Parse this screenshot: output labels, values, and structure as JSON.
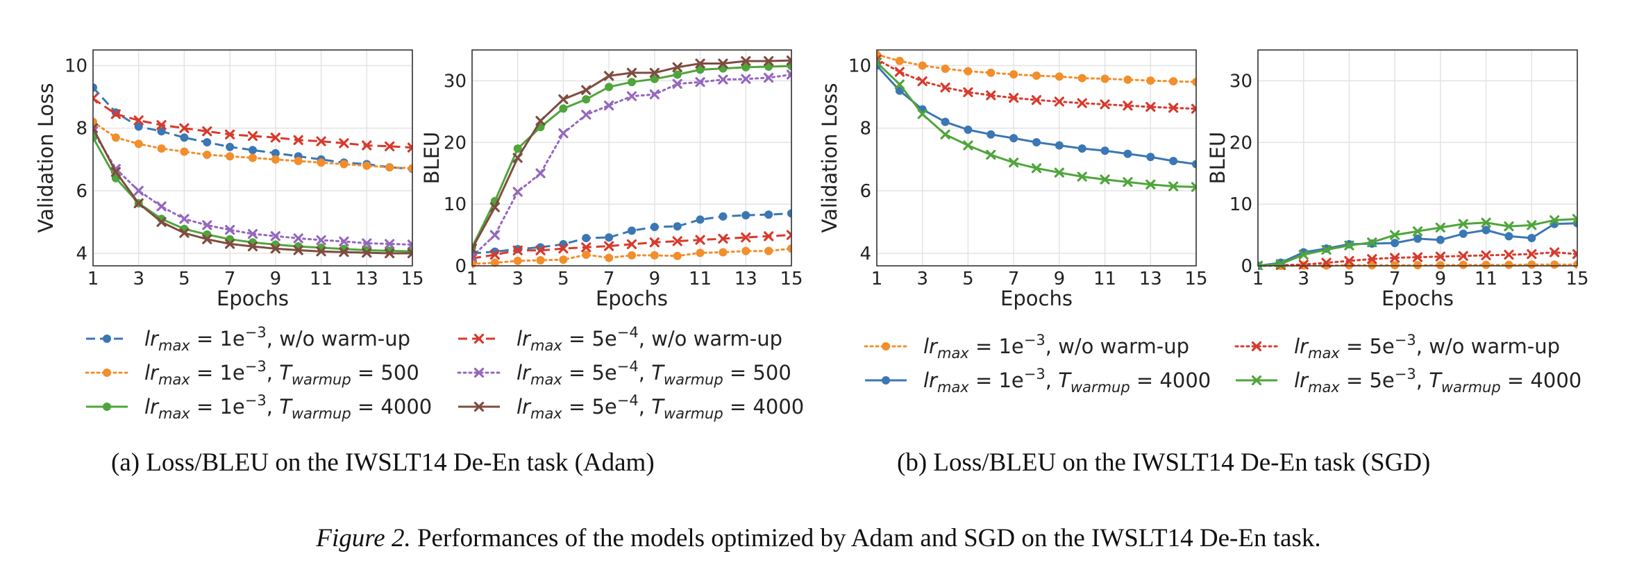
{
  "figure": {
    "caption_label": "Figure 2.",
    "caption_text": " Performances of the models optimized by Adam and SGD on the IWSLT14 De-En task."
  },
  "subfigures": [
    {
      "caption": "(a)  Loss/BLEU on the IWSLT14 De-En task (Adam)",
      "legend": [
        {
          "color": "#3a77b4",
          "dash": "dashed",
          "marker": "circle",
          "lr_base": "1",
          "lr_exp": "−3",
          "lr_sep": "",
          "suffix": "w/o warm-up",
          "warmup": ""
        },
        {
          "color": "#d73a2c",
          "dash": "dashed",
          "marker": "x",
          "lr_base": "5",
          "lr_exp": "−4",
          "lr_sep": "",
          "suffix": "w/o warm-up",
          "warmup": ""
        },
        {
          "color": "#f28e2b",
          "dash": "dotted",
          "marker": "circle",
          "lr_base": "1",
          "lr_exp": "−3",
          "lr_sep": "",
          "suffix": "",
          "warmup": "500"
        },
        {
          "color": "#9467bd",
          "dash": "dotted",
          "marker": "x",
          "lr_base": "5",
          "lr_exp": "−4",
          "lr_sep": "",
          "suffix": "",
          "warmup": "500"
        },
        {
          "color": "#4fa53b",
          "dash": "solid",
          "marker": "circle",
          "lr_base": "1",
          "lr_exp": "−3",
          "lr_sep": "",
          "suffix": "",
          "warmup": "4000"
        },
        {
          "color": "#7f4c40",
          "dash": "solid",
          "marker": "x",
          "lr_base": "5",
          "lr_exp": "−4",
          "lr_sep": "",
          "suffix": "",
          "warmup": "4000"
        }
      ]
    },
    {
      "caption": "(b)  Loss/BLEU on the IWSLT14 De-En task (SGD)",
      "legend": [
        {
          "color": "#f28e2b",
          "dash": "dotted",
          "marker": "circle",
          "lr_base": "1",
          "lr_exp": "−3",
          "lr_sep": "",
          "suffix": "w/o warm-up",
          "warmup": ""
        },
        {
          "color": "#d73a2c",
          "dash": "dotted",
          "marker": "x",
          "lr_base": "5",
          "lr_exp": "−3",
          "lr_sep": "",
          "suffix": "w/o warm-up",
          "warmup": ""
        },
        {
          "color": "#3a77b4",
          "dash": "solid",
          "marker": "circle",
          "lr_base": "1",
          "lr_exp": "−3",
          "lr_sep": "",
          "suffix": "",
          "warmup": "4000"
        },
        {
          "color": "#4fa53b",
          "dash": "solid",
          "marker": "x",
          "lr_base": "5",
          "lr_exp": "−3",
          "lr_sep": "",
          "suffix": "",
          "warmup": "4000"
        }
      ]
    }
  ],
  "legend_text": {
    "lr": "lr",
    "max": "max",
    "e": "e",
    "T": "T",
    "warmup_sub": "warmup",
    "eq": " = ",
    "comma": ", "
  },
  "chart_data": [
    {
      "type": "line",
      "panel": "adam-loss",
      "xlabel": "Epochs",
      "ylabel": "Validation Loss",
      "xlim": [
        1,
        15
      ],
      "ylim": [
        3.6,
        10.5
      ],
      "xticks": [
        1,
        3,
        5,
        7,
        9,
        11,
        13,
        15
      ],
      "yticks": [
        4,
        6,
        8,
        10
      ],
      "grid": true,
      "x": [
        1,
        2,
        3,
        4,
        5,
        6,
        7,
        8,
        9,
        10,
        11,
        12,
        13,
        14,
        15
      ],
      "series": [
        {
          "color": "#3a77b4",
          "dash": "dashed",
          "marker": "circle",
          "values": [
            9.3,
            8.5,
            8.05,
            7.9,
            7.7,
            7.55,
            7.4,
            7.3,
            7.2,
            7.1,
            7.0,
            6.9,
            6.85,
            6.75,
            6.7
          ]
        },
        {
          "color": "#d73a2c",
          "dash": "dashed",
          "marker": "x",
          "values": [
            8.95,
            8.45,
            8.25,
            8.1,
            8.0,
            7.9,
            7.8,
            7.75,
            7.7,
            7.62,
            7.58,
            7.52,
            7.45,
            7.42,
            7.38
          ]
        },
        {
          "color": "#f28e2b",
          "dash": "dotted",
          "marker": "circle",
          "values": [
            8.2,
            7.7,
            7.5,
            7.35,
            7.25,
            7.15,
            7.1,
            7.05,
            7.0,
            6.95,
            6.9,
            6.85,
            6.8,
            6.75,
            6.72
          ]
        },
        {
          "color": "#9467bd",
          "dash": "dotted",
          "marker": "x",
          "values": [
            7.9,
            6.7,
            6.0,
            5.5,
            5.1,
            4.9,
            4.75,
            4.62,
            4.55,
            4.48,
            4.42,
            4.38,
            4.32,
            4.3,
            4.28
          ]
        },
        {
          "color": "#4fa53b",
          "dash": "solid",
          "marker": "circle",
          "values": [
            7.7,
            6.4,
            5.6,
            5.1,
            4.78,
            4.6,
            4.45,
            4.35,
            4.28,
            4.22,
            4.18,
            4.14,
            4.1,
            4.08,
            4.06
          ]
        },
        {
          "color": "#7f4c40",
          "dash": "solid",
          "marker": "x",
          "values": [
            8.0,
            6.6,
            5.6,
            5.0,
            4.65,
            4.45,
            4.3,
            4.22,
            4.15,
            4.1,
            4.06,
            4.04,
            4.02,
            4.0,
            4.0
          ]
        }
      ]
    },
    {
      "type": "line",
      "panel": "adam-bleu",
      "xlabel": "Epochs",
      "ylabel": "BLEU",
      "xlim": [
        1,
        15
      ],
      "ylim": [
        0,
        35
      ],
      "xticks": [
        1,
        3,
        5,
        7,
        9,
        11,
        13,
        15
      ],
      "yticks": [
        0,
        10,
        20,
        30
      ],
      "grid": true,
      "x": [
        1,
        2,
        3,
        4,
        5,
        6,
        7,
        8,
        9,
        10,
        11,
        12,
        13,
        14,
        15
      ],
      "series": [
        {
          "color": "#3a77b4",
          "dash": "dashed",
          "marker": "circle",
          "values": [
            2.0,
            2.3,
            2.7,
            3.0,
            3.5,
            4.5,
            4.6,
            5.7,
            6.3,
            6.4,
            7.5,
            8.0,
            8.2,
            8.3,
            8.5
          ]
        },
        {
          "color": "#d73a2c",
          "dash": "dashed",
          "marker": "x",
          "values": [
            1.2,
            1.8,
            2.5,
            2.5,
            2.8,
            3.0,
            3.2,
            3.5,
            3.8,
            4.0,
            4.2,
            4.4,
            4.6,
            4.8,
            5.0
          ]
        },
        {
          "color": "#f28e2b",
          "dash": "dotted",
          "marker": "circle",
          "values": [
            0.3,
            0.5,
            0.8,
            0.9,
            1.0,
            1.8,
            1.3,
            1.7,
            1.7,
            1.6,
            2.1,
            2.2,
            2.4,
            2.4,
            2.8
          ]
        },
        {
          "color": "#9467bd",
          "dash": "dotted",
          "marker": "x",
          "values": [
            1.5,
            5.0,
            12.0,
            15.0,
            21.5,
            24.5,
            26.0,
            27.5,
            27.8,
            29.5,
            29.8,
            30.2,
            30.3,
            30.5,
            31.0
          ]
        },
        {
          "color": "#4fa53b",
          "dash": "solid",
          "marker": "circle",
          "values": [
            3.0,
            10.5,
            19.0,
            22.5,
            25.5,
            27.0,
            29.0,
            29.8,
            30.3,
            31.0,
            31.8,
            32.0,
            32.2,
            32.3,
            32.4
          ]
        },
        {
          "color": "#7f4c40",
          "dash": "solid",
          "marker": "x",
          "values": [
            2.8,
            9.5,
            17.5,
            23.5,
            27.0,
            28.5,
            30.8,
            31.3,
            31.3,
            32.2,
            32.8,
            32.8,
            33.2,
            33.2,
            33.3
          ]
        }
      ]
    },
    {
      "type": "line",
      "panel": "sgd-loss",
      "xlabel": "Epochs",
      "ylabel": "Validation Loss",
      "xlim": [
        1,
        15
      ],
      "ylim": [
        3.6,
        10.5
      ],
      "xticks": [
        1,
        3,
        5,
        7,
        9,
        11,
        13,
        15
      ],
      "yticks": [
        4,
        6,
        8,
        10
      ],
      "grid": true,
      "x": [
        1,
        2,
        3,
        4,
        5,
        6,
        7,
        8,
        9,
        10,
        11,
        12,
        13,
        14,
        15
      ],
      "series": [
        {
          "color": "#f28e2b",
          "dash": "dotted",
          "marker": "circle",
          "values": [
            10.35,
            10.15,
            10.0,
            9.9,
            9.82,
            9.77,
            9.72,
            9.68,
            9.65,
            9.6,
            9.58,
            9.55,
            9.52,
            9.5,
            9.48
          ]
        },
        {
          "color": "#d73a2c",
          "dash": "dotted",
          "marker": "x",
          "values": [
            10.2,
            9.8,
            9.5,
            9.3,
            9.15,
            9.05,
            8.97,
            8.9,
            8.85,
            8.8,
            8.76,
            8.72,
            8.68,
            8.65,
            8.62
          ]
        },
        {
          "color": "#3a77b4",
          "dash": "solid",
          "marker": "circle",
          "values": [
            10.0,
            9.2,
            8.6,
            8.2,
            7.95,
            7.8,
            7.68,
            7.55,
            7.45,
            7.35,
            7.28,
            7.18,
            7.08,
            6.95,
            6.85
          ]
        },
        {
          "color": "#4fa53b",
          "dash": "solid",
          "marker": "x",
          "values": [
            10.1,
            9.4,
            8.45,
            7.8,
            7.45,
            7.15,
            6.9,
            6.72,
            6.58,
            6.45,
            6.36,
            6.28,
            6.2,
            6.14,
            6.12
          ]
        }
      ]
    },
    {
      "type": "line",
      "panel": "sgd-bleu",
      "xlabel": "Epochs",
      "ylabel": "BLEU",
      "xlim": [
        1,
        15
      ],
      "ylim": [
        0,
        35
      ],
      "xticks": [
        1,
        3,
        5,
        7,
        9,
        11,
        13,
        15
      ],
      "yticks": [
        0,
        10,
        20,
        30
      ],
      "grid": true,
      "x": [
        1,
        2,
        3,
        4,
        5,
        6,
        7,
        8,
        9,
        10,
        11,
        12,
        13,
        14,
        15
      ],
      "series": [
        {
          "color": "#f28e2b",
          "dash": "dotted",
          "marker": "circle",
          "values": [
            0.0,
            0.0,
            0.05,
            0.05,
            0.1,
            0.1,
            0.1,
            0.1,
            0.1,
            0.15,
            0.15,
            0.15,
            0.2,
            0.2,
            0.2
          ]
        },
        {
          "color": "#d73a2c",
          "dash": "dotted",
          "marker": "x",
          "values": [
            0.0,
            0.1,
            0.2,
            0.5,
            0.8,
            1.1,
            1.3,
            1.4,
            1.5,
            1.6,
            1.7,
            1.8,
            1.9,
            2.2,
            1.9
          ]
        },
        {
          "color": "#3a77b4",
          "dash": "solid",
          "marker": "circle",
          "values": [
            0.0,
            0.5,
            2.2,
            2.8,
            3.5,
            3.6,
            3.7,
            4.4,
            4.2,
            5.2,
            5.8,
            4.8,
            4.5,
            6.8,
            6.9
          ]
        },
        {
          "color": "#4fa53b",
          "dash": "solid",
          "marker": "x",
          "values": [
            0.0,
            0.3,
            1.8,
            2.6,
            3.3,
            3.8,
            5.0,
            5.6,
            6.2,
            6.8,
            7.0,
            6.4,
            6.6,
            7.4,
            7.6
          ]
        }
      ]
    }
  ]
}
